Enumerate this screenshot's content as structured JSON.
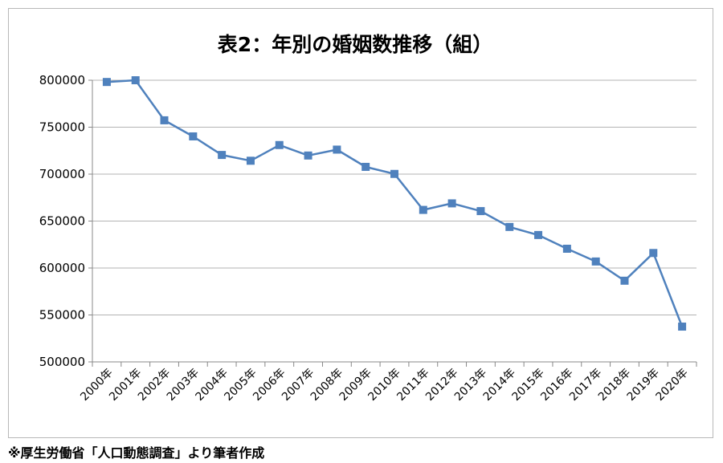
{
  "caption": "※厚生労働省「人口動態調査」より筆者作成",
  "chart_data": {
    "type": "line",
    "title": "表2：年別の婚姻数推移（組）",
    "xlabel": "",
    "ylabel": "",
    "categories": [
      "2000年",
      "2001年",
      "2002年",
      "2003年",
      "2004年",
      "2005年",
      "2006年",
      "2007年",
      "2008年",
      "2009年",
      "2010年",
      "2011年",
      "2012年",
      "2013年",
      "2014年",
      "2015年",
      "2016年",
      "2017年",
      "2018年",
      "2019年",
      "2020年"
    ],
    "series": [
      {
        "values": [
          798138,
          799999,
          757331,
          740191,
          720417,
          714265,
          730971,
          719822,
          726106,
          707734,
          700222,
          661895,
          668869,
          660613,
          643749,
          635156,
          620531,
          606952,
          586481,
          616000,
          537583
        ]
      }
    ],
    "ylim": [
      500000,
      800000
    ],
    "yticks": [
      500000,
      550000,
      600000,
      650000,
      700000,
      750000,
      800000
    ],
    "grid": true,
    "legend": "none",
    "line_color": "#4f81bd",
    "marker": "square"
  }
}
